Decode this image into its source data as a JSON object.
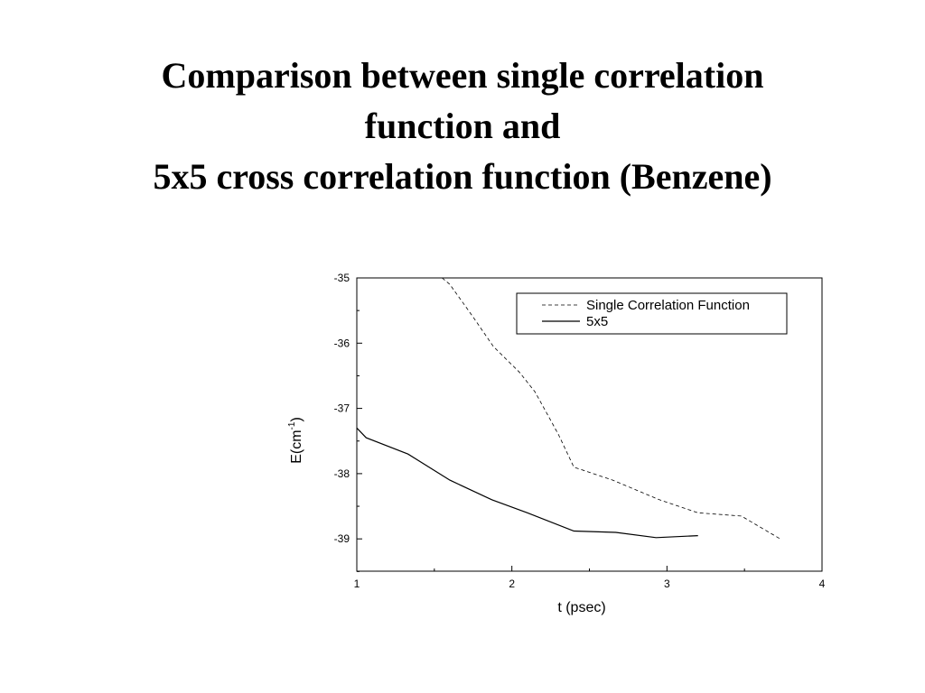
{
  "slide": {
    "title_lines": [
      "Comparison between single correlation",
      "function and",
      "5x5 cross correlation function (Benzene)"
    ]
  },
  "chart_data": {
    "type": "line",
    "title": "",
    "xlabel": "t (psec)",
    "ylabel_main": "E(cm",
    "ylabel_sup": "-1",
    "ylabel_close": ")",
    "xlim": [
      1,
      4
    ],
    "ylim": [
      -39.5,
      -35
    ],
    "x_ticks": [
      1,
      2,
      3,
      4
    ],
    "y_ticks": [
      -35,
      -36,
      -37,
      -38,
      -39
    ],
    "grid": false,
    "legend_position": "top-right",
    "series": [
      {
        "name": "Single Correlation Function",
        "style": "dashed",
        "x": [
          1.55,
          1.6,
          1.75,
          1.88,
          2.05,
          2.15,
          2.3,
          2.4,
          2.65,
          2.95,
          3.2,
          3.48,
          3.73
        ],
        "y": [
          -35,
          -35.1,
          -35.6,
          -36.05,
          -36.45,
          -36.75,
          -37.4,
          -37.9,
          -38.1,
          -38.4,
          -38.6,
          -38.65,
          -39.0
        ]
      },
      {
        "name": "5x5",
        "style": "solid",
        "x": [
          1.0,
          1.06,
          1.33,
          1.6,
          1.87,
          2.1,
          2.4,
          2.67,
          2.93,
          3.2
        ],
        "y": [
          -37.3,
          -37.45,
          -37.7,
          -38.1,
          -38.4,
          -38.6,
          -38.88,
          -38.9,
          -38.98,
          -38.95
        ]
      }
    ]
  }
}
